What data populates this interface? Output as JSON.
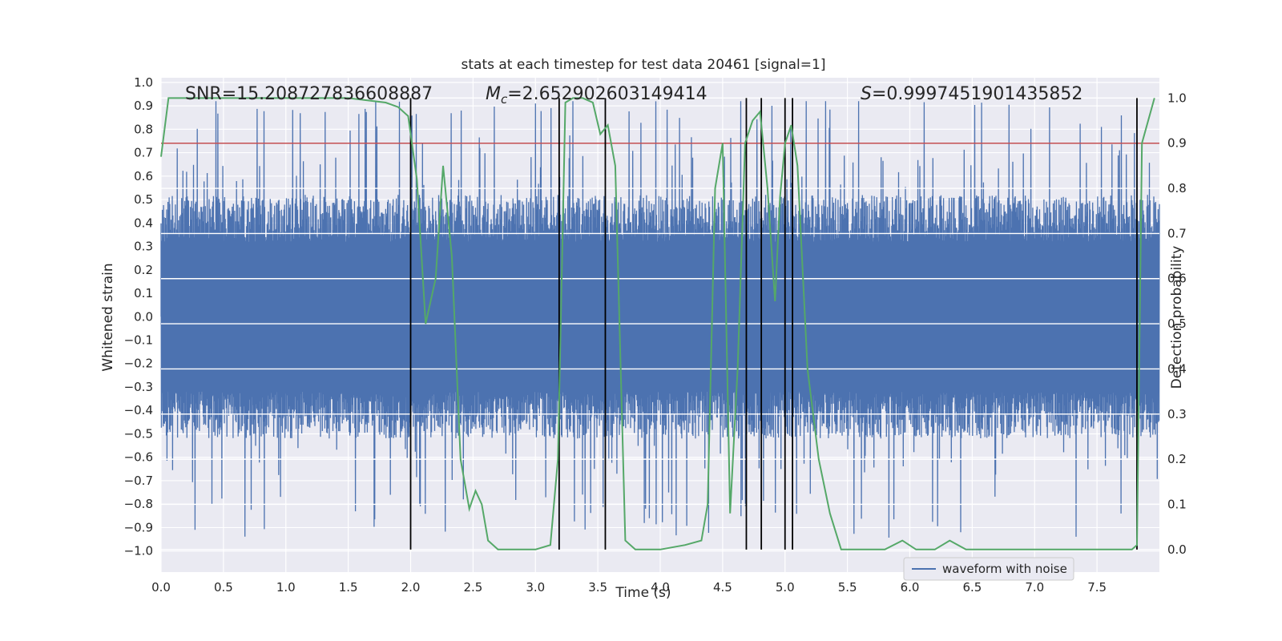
{
  "chart_data": {
    "type": "line",
    "title": "stats at each timestep for test data 20461 [signal=1]",
    "xlabel": "Time (s)",
    "ylabel": "Whitened strain",
    "y2label": "Detection probability",
    "xlim": [
      0.0,
      8.0
    ],
    "ylim": [
      -1.09,
      1.02
    ],
    "y2lim": [
      -0.05,
      1.045
    ],
    "xticks": [
      "0.0",
      "0.5",
      "1.0",
      "1.5",
      "2.0",
      "2.5",
      "3.0",
      "3.5",
      "4.0",
      "4.5",
      "5.0",
      "5.5",
      "6.0",
      "6.5",
      "7.0",
      "7.5"
    ],
    "yticks": [
      "1.0",
      "0.9",
      "0.8",
      "0.7",
      "0.6",
      "0.5",
      "0.4",
      "0.3",
      "0.2",
      "0.1",
      "0.0",
      "-0.1",
      "-0.2",
      "-0.3",
      "-0.4",
      "-0.5",
      "-0.6",
      "-0.7",
      "-0.8",
      "-0.9",
      "-1.0"
    ],
    "y2ticks": [
      "1.0",
      "0.9",
      "0.8",
      "0.7",
      "0.6",
      "0.5",
      "0.4",
      "0.3",
      "0.2",
      "0.1",
      "0.0"
    ],
    "annotations": {
      "snr": "SNR=15.208727836608887",
      "mc_symbol": "M",
      "mc_sub": "c",
      "mc_value": "=2.652902603149414",
      "s_symbol": "S",
      "s_value": "=0.9997451901435852"
    },
    "legend": {
      "label": "waveform with noise",
      "position": "lower-right"
    },
    "threshold": {
      "value": 0.9,
      "axis": "y2",
      "color": "#c44e52"
    },
    "event_lines_x": [
      2.0,
      3.19,
      3.56,
      4.69,
      4.81,
      5.0,
      5.06,
      7.82
    ],
    "series": [
      {
        "name": "waveform with noise",
        "color": "#4c72b0",
        "kind": "noise",
        "amplitude_envelope": 0.5,
        "peak_range": [
          -1.0,
          0.92
        ]
      },
      {
        "name": "detection probability",
        "color": "#55a868",
        "axis": "y2",
        "x": [
          0.0,
          0.06,
          0.12,
          0.3,
          0.6,
          1.0,
          1.5,
          1.8,
          1.9,
          1.98,
          2.05,
          2.12,
          2.2,
          2.26,
          2.33,
          2.4,
          2.47,
          2.52,
          2.57,
          2.62,
          2.7,
          3.0,
          3.12,
          3.18,
          3.24,
          3.3,
          3.38,
          3.46,
          3.52,
          3.58,
          3.64,
          3.72,
          3.8,
          4.0,
          4.2,
          4.33,
          4.38,
          4.44,
          4.5,
          4.56,
          4.62,
          4.68,
          4.74,
          4.8,
          4.86,
          4.92,
          4.96,
          5.0,
          5.05,
          5.1,
          5.18,
          5.27,
          5.36,
          5.45,
          5.6,
          5.8,
          5.94,
          6.05,
          6.2,
          6.32,
          6.45,
          6.6,
          6.9,
          7.2,
          7.6,
          7.78,
          7.82,
          7.86,
          7.96
        ],
        "y": [
          0.87,
          1.0,
          1.0,
          1.0,
          1.0,
          1.0,
          1.0,
          0.99,
          0.98,
          0.96,
          0.82,
          0.5,
          0.6,
          0.85,
          0.65,
          0.2,
          0.09,
          0.13,
          0.1,
          0.02,
          0.0,
          0.0,
          0.01,
          0.2,
          0.99,
          1.0,
          1.0,
          0.99,
          0.92,
          0.94,
          0.85,
          0.02,
          0.0,
          0.0,
          0.01,
          0.02,
          0.1,
          0.8,
          0.9,
          0.08,
          0.4,
          0.9,
          0.95,
          0.97,
          0.8,
          0.55,
          0.78,
          0.9,
          0.94,
          0.85,
          0.4,
          0.2,
          0.08,
          0.0,
          0.0,
          0.0,
          0.02,
          0.0,
          0.0,
          0.02,
          0.0,
          0.0,
          0.0,
          0.0,
          0.0,
          0.0,
          0.01,
          0.9,
          1.0
        ]
      }
    ]
  }
}
